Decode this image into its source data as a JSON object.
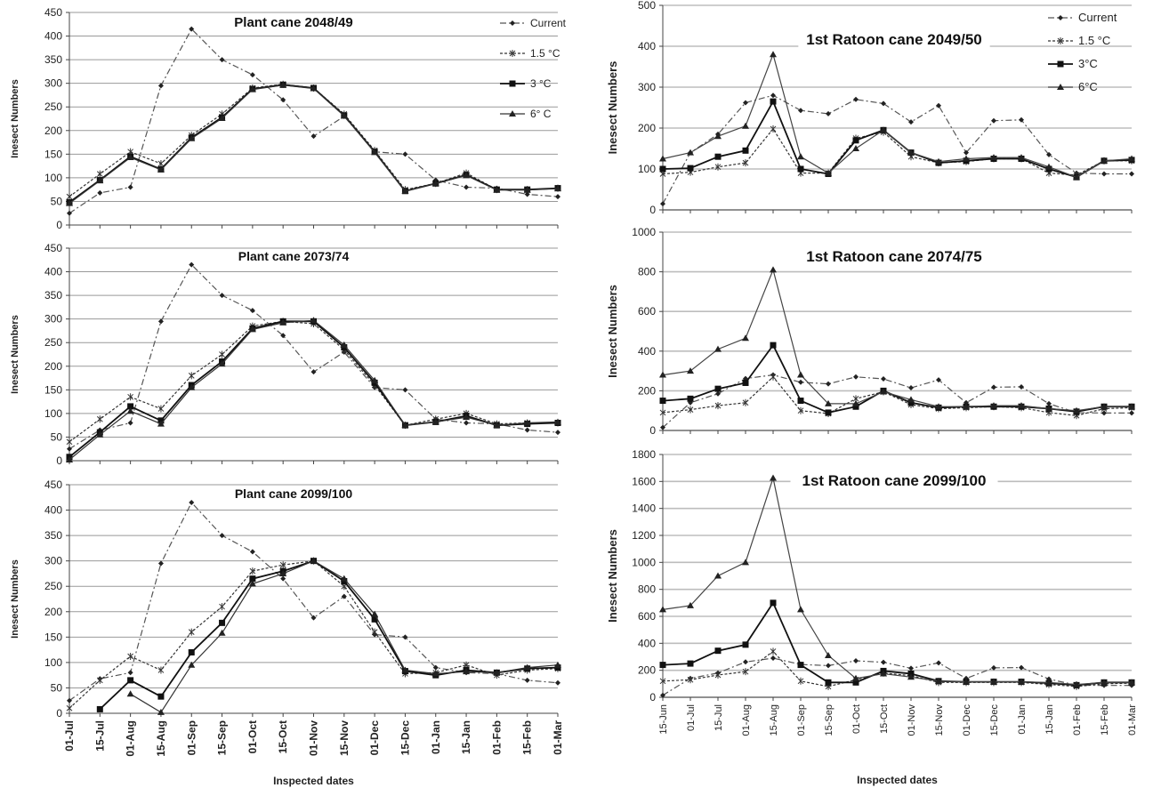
{
  "chart_data": [
    {
      "type": "line",
      "title": "Plant cane 2048/49",
      "ylabel": "Inesect Numbers",
      "xlabel": "",
      "ylim": [
        0,
        450
      ],
      "ystep": 50,
      "grid": true,
      "legend_position": "top-right",
      "categories": [
        "01-Jul",
        "15-Jul",
        "01-Aug",
        "15-Aug",
        "01-Sep",
        "15-Sep",
        "01-Oct",
        "15-Oct",
        "01-Nov",
        "15-Nov",
        "01-Dec",
        "15-Dec",
        "01-Jan",
        "15-Jan",
        "01-Feb",
        "15-Feb",
        "01-Mar"
      ],
      "series": [
        {
          "name": "Current",
          "values": [
            25,
            68,
            80,
            295,
            415,
            350,
            318,
            265,
            188,
            230,
            155,
            150,
            95,
            80,
            78,
            65,
            60
          ]
        },
        {
          "name": "1.5 °C",
          "values": [
            60,
            108,
            155,
            130,
            190,
            235,
            290,
            298,
            290,
            235,
            158,
            75,
            88,
            110,
            75,
            75,
            78
          ]
        },
        {
          "name": "3 °C",
          "values": [
            48,
            95,
            145,
            118,
            185,
            228,
            288,
            297,
            290,
            232,
            155,
            72,
            88,
            106,
            75,
            75,
            78
          ]
        },
        {
          "name": "6° C",
          "values": [
            46,
            94,
            143,
            117,
            183,
            226,
            287,
            296,
            289,
            231,
            154,
            72,
            88,
            105,
            74,
            74,
            77
          ]
        }
      ]
    },
    {
      "type": "line",
      "title": "Plant cane 2073/74",
      "ylabel": "Inesect Numbers",
      "xlabel": "",
      "ylim": [
        0,
        450
      ],
      "ystep": 50,
      "grid": true,
      "legend_position": "none",
      "categories": [
        "01-Jul",
        "15-Jul",
        "01-Aug",
        "15-Aug",
        "01-Sep",
        "15-Sep",
        "01-Oct",
        "15-Oct",
        "01-Nov",
        "15-Nov",
        "01-Dec",
        "15-Dec",
        "01-Jan",
        "15-Jan",
        "01-Feb",
        "15-Feb",
        "01-Mar"
      ],
      "series": [
        {
          "name": "Current",
          "values": [
            25,
            65,
            80,
            295,
            415,
            350,
            318,
            265,
            188,
            230,
            155,
            150,
            88,
            80,
            78,
            65,
            60
          ]
        },
        {
          "name": "1.5 °C",
          "values": [
            40,
            88,
            135,
            110,
            180,
            225,
            285,
            295,
            290,
            235,
            160,
            75,
            88,
            100,
            78,
            80,
            80
          ]
        },
        {
          "name": "3 °C",
          "values": [
            8,
            60,
            115,
            85,
            160,
            210,
            280,
            295,
            295,
            240,
            165,
            75,
            82,
            95,
            75,
            78,
            80
          ]
        },
        {
          "name": "6° C",
          "values": [
            2,
            55,
            105,
            78,
            155,
            205,
            278,
            292,
            297,
            245,
            170,
            75,
            82,
            92,
            75,
            80,
            82
          ]
        }
      ]
    },
    {
      "type": "line",
      "title": "Plant cane 2099/100",
      "ylabel": "Inesect Numbers",
      "xlabel": "Inspected dates",
      "ylim": [
        0,
        450
      ],
      "ystep": 50,
      "grid": true,
      "legend_position": "none",
      "categories": [
        "01-Jul",
        "15-Jul",
        "01-Aug",
        "15-Aug",
        "01-Sep",
        "15-Sep",
        "01-Oct",
        "15-Oct",
        "01-Nov",
        "15-Nov",
        "01-Dec",
        "15-Dec",
        "01-Jan",
        "15-Jan",
        "01-Feb",
        "15-Feb",
        "01-Mar"
      ],
      "series": [
        {
          "name": "Current",
          "values": [
            25,
            68,
            80,
            295,
            415,
            350,
            318,
            265,
            188,
            230,
            155,
            150,
            90,
            80,
            78,
            65,
            60
          ]
        },
        {
          "name": "1.5 °C",
          "values": [
            10,
            65,
            112,
            85,
            160,
            210,
            280,
            292,
            300,
            250,
            160,
            78,
            80,
            95,
            75,
            85,
            88
          ]
        },
        {
          "name": "3 °C",
          "values": [
            null,
            8,
            65,
            33,
            120,
            178,
            265,
            280,
            300,
            260,
            185,
            83,
            75,
            85,
            80,
            88,
            90
          ]
        },
        {
          "name": "6° C",
          "values": [
            null,
            null,
            38,
            2,
            95,
            158,
            255,
            275,
            300,
            265,
            195,
            85,
            78,
            82,
            80,
            90,
            95
          ]
        }
      ]
    },
    {
      "type": "line",
      "title": "1st Ratoon cane 2049/50",
      "ylabel": "Inesect Numbers",
      "xlabel": "",
      "ylim": [
        0,
        500
      ],
      "ystep": 100,
      "grid": true,
      "legend_position": "top-right",
      "categories": [
        "15-Jun",
        "01-Jul",
        "15-Jul",
        "01-Aug",
        "15-Aug",
        "01-Sep",
        "15-Sep",
        "01-Oct",
        "15-Oct",
        "01-Nov",
        "15-Nov",
        "01-Dec",
        "15-Dec",
        "01-Jan",
        "15-Jan",
        "01-Feb",
        "15-Feb",
        "01-Mar"
      ],
      "series": [
        {
          "name": "Current",
          "values": [
            15,
            140,
            185,
            262,
            280,
            243,
            235,
            270,
            260,
            215,
            255,
            140,
            218,
            220,
            135,
            90,
            88,
            88
          ]
        },
        {
          "name": "1.5 °C",
          "values": [
            88,
            92,
            105,
            115,
            198,
            90,
            90,
            175,
            190,
            130,
            115,
            118,
            125,
            125,
            90,
            85,
            120,
            120
          ]
        },
        {
          "name": "3°C",
          "values": [
            100,
            102,
            130,
            145,
            265,
            100,
            88,
            170,
            195,
            140,
            115,
            120,
            125,
            125,
            100,
            80,
            120,
            122
          ]
        },
        {
          "name": "6°C",
          "values": [
            125,
            140,
            180,
            205,
            380,
            130,
            90,
            150,
            195,
            140,
            118,
            125,
            128,
            128,
            105,
            80,
            120,
            125
          ]
        }
      ]
    },
    {
      "type": "line",
      "title": "1st Ratoon  cane 2074/75",
      "ylabel": "Inesect Numbers",
      "xlabel": "",
      "ylim": [
        0,
        1000
      ],
      "ystep": 200,
      "grid": true,
      "legend_position": "none",
      "categories": [
        "15-Jun",
        "01-Jul",
        "15-Jul",
        "01-Aug",
        "15-Aug",
        "01-Sep",
        "15-Sep",
        "01-Oct",
        "15-Oct",
        "01-Nov",
        "15-Nov",
        "01-Dec",
        "15-Dec",
        "01-Jan",
        "15-Jan",
        "01-Feb",
        "15-Feb",
        "01-Mar"
      ],
      "series": [
        {
          "name": "Current",
          "values": [
            15,
            140,
            185,
            262,
            280,
            243,
            235,
            270,
            260,
            215,
            255,
            140,
            218,
            220,
            135,
            90,
            88,
            88
          ]
        },
        {
          "name": "1.5 °C",
          "values": [
            90,
            105,
            125,
            140,
            270,
            100,
            85,
            160,
            195,
            130,
            110,
            115,
            120,
            115,
            90,
            75,
            110,
            115
          ]
        },
        {
          "name": "3°C",
          "values": [
            150,
            160,
            210,
            240,
            430,
            150,
            90,
            120,
            200,
            140,
            115,
            120,
            120,
            120,
            110,
            95,
            120,
            120
          ]
        },
        {
          "name": "6°C",
          "values": [
            280,
            300,
            410,
            465,
            810,
            280,
            135,
            135,
            195,
            155,
            120,
            120,
            125,
            125,
            110,
            100,
            120,
            120
          ]
        }
      ]
    },
    {
      "type": "line",
      "title": "1st Ratoon  cane 2099/100",
      "ylabel": "Inesect Numbers",
      "xlabel": "Inspected dates",
      "ylim": [
        0,
        1800
      ],
      "ystep": 200,
      "grid": true,
      "legend_position": "none",
      "categories": [
        "15-Jun",
        "01-Jul",
        "15-Jul",
        "01-Aug",
        "15-Aug",
        "01-Sep",
        "15-Sep",
        "01-Oct",
        "15-Oct",
        "01-Nov",
        "15-Nov",
        "01-Dec",
        "15-Dec",
        "01-Jan",
        "15-Jan",
        "01-Feb",
        "15-Feb",
        "01-Mar"
      ],
      "series": [
        {
          "name": "Current",
          "values": [
            15,
            140,
            180,
            262,
            290,
            243,
            235,
            270,
            260,
            215,
            255,
            140,
            218,
            220,
            135,
            90,
            88,
            88
          ]
        },
        {
          "name": "1.5 °C",
          "values": [
            120,
            130,
            165,
            190,
            340,
            120,
            80,
            130,
            180,
            160,
            110,
            110,
            110,
            110,
            95,
            80,
            100,
            105
          ]
        },
        {
          "name": "3°C",
          "values": [
            240,
            250,
            345,
            390,
            700,
            240,
            110,
            110,
            195,
            175,
            120,
            115,
            115,
            115,
            105,
            90,
            110,
            110
          ]
        },
        {
          "name": "6°C",
          "values": [
            650,
            680,
            900,
            1000,
            1625,
            650,
            310,
            140,
            175,
            150,
            120,
            115,
            115,
            115,
            110,
            95,
            110,
            110
          ]
        }
      ]
    }
  ]
}
